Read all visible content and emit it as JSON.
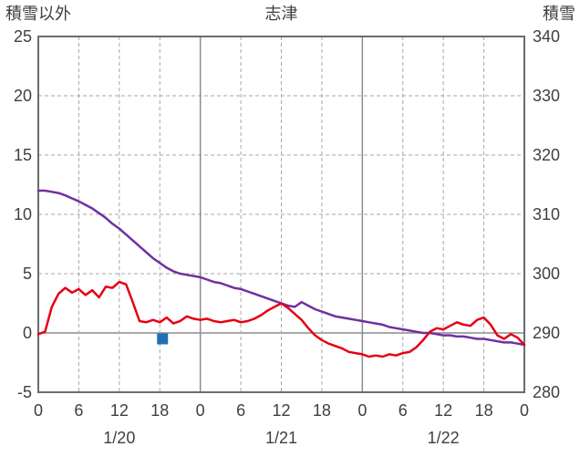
{
  "chart_data": {
    "type": "line",
    "title": "志津",
    "left_axis": {
      "title": "積雪以外",
      "min": -5,
      "max": 25,
      "ticks": [
        25,
        20,
        15,
        10,
        5,
        0,
        -5
      ]
    },
    "right_axis": {
      "title": "積雪",
      "min": 280,
      "max": 340,
      "ticks": [
        340,
        330,
        320,
        310,
        300,
        290,
        280
      ]
    },
    "x_axis": {
      "total_hours": 72,
      "tick_step": 6,
      "tick_labels": [
        "0",
        "6",
        "12",
        "18",
        "0",
        "6",
        "12",
        "18",
        "0",
        "6",
        "12",
        "18",
        "0"
      ],
      "day_labels": [
        "1/20",
        "1/21",
        "1/22"
      ],
      "solid_gridline_hours": [
        24,
        48
      ]
    },
    "series": [
      {
        "id": "snow",
        "name": "積雪",
        "axis": "right",
        "color": "#7030a0",
        "values": [
          314,
          314,
          313.8,
          313.6,
          313.2,
          312.7,
          312.2,
          311.6,
          311,
          310.2,
          309.4,
          308.4,
          307.6,
          306.6,
          305.6,
          304.6,
          303.6,
          302.6,
          301.8,
          301,
          300.4,
          300,
          299.8,
          299.6,
          299.4,
          299,
          298.6,
          298.4,
          298,
          297.6,
          297.4,
          297,
          296.6,
          296.2,
          295.8,
          295.4,
          295,
          294.6,
          294.4,
          295.2,
          294.6,
          294,
          293.6,
          293.2,
          292.8,
          292.6,
          292.4,
          292.2,
          292,
          291.8,
          291.6,
          291.4,
          291,
          290.8,
          290.6,
          290.4,
          290.2,
          290,
          290,
          289.8,
          289.6,
          289.6,
          289.4,
          289.4,
          289.2,
          289,
          289,
          288.8,
          288.6,
          288.4,
          288.4,
          288.2,
          288
        ]
      },
      {
        "id": "other",
        "name": "積雪以外",
        "axis": "left",
        "color": "#e60012",
        "values": [
          -0.1,
          0.1,
          2.2,
          3.3,
          3.8,
          3.4,
          3.7,
          3.2,
          3.6,
          3,
          3.9,
          3.8,
          4.3,
          4.1,
          2.6,
          1,
          0.9,
          1.1,
          0.9,
          1.3,
          0.8,
          1,
          1.4,
          1.2,
          1.1,
          1.2,
          1,
          0.9,
          1,
          1.1,
          0.9,
          1,
          1.2,
          1.5,
          1.9,
          2.2,
          2.5,
          2.1,
          1.6,
          1.1,
          0.4,
          -0.2,
          -0.6,
          -0.9,
          -1.1,
          -1.3,
          -1.6,
          -1.7,
          -1.8,
          -2,
          -1.9,
          -2,
          -1.8,
          -1.9,
          -1.7,
          -1.6,
          -1.2,
          -0.6,
          0.1,
          0.4,
          0.3,
          0.6,
          0.9,
          0.7,
          0.6,
          1.1,
          1.3,
          0.7,
          -0.2,
          -0.5,
          -0.1,
          -0.4,
          -1
        ]
      }
    ],
    "marker": {
      "hour": 18.4,
      "value": -0.5,
      "axis": "left",
      "color": "#2070b4",
      "shape": "square",
      "size": 12
    },
    "grid": {
      "dashed": true,
      "legend": "none"
    }
  },
  "colors": {
    "frame": "#6b6b6b",
    "grid_dashed": "#a6a6a6",
    "grid_solid": "#8c8c8c",
    "zero_line": "#8c8c8c",
    "text": "#3f3f3f",
    "background": "#ffffff"
  }
}
